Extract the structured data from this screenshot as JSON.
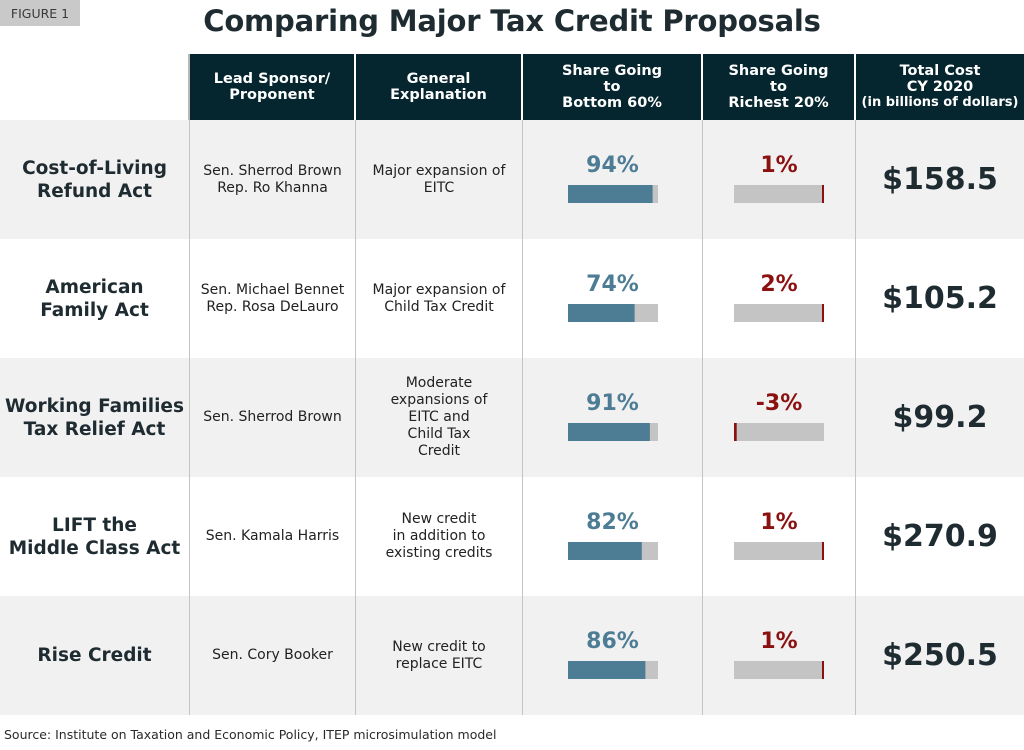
{
  "figure_label": "FIGURE 1",
  "headers": {
    "sponsor": [
      "Lead Sponsor/",
      "Proponent"
    ],
    "explanation": [
      "General",
      "Explanation"
    ],
    "bottom": [
      "Share Going",
      "to",
      "Bottom 60%"
    ],
    "richest": [
      "Share Going",
      "to",
      "Richest 20%"
    ],
    "cost": [
      "Total Cost",
      "CY 2020"
    ],
    "cost_sub": "(in billions of dollars)"
  },
  "rows": [
    {
      "name": [
        "Cost-of-Living",
        "Refund Act"
      ],
      "sponsor": [
        "Sen. Sherrod Brown",
        "Rep. Ro Khanna"
      ],
      "explanation": [
        "Major expansion of",
        "EITC"
      ],
      "bottom60": "94%",
      "richest20": "1%",
      "cost": "$158.5"
    },
    {
      "name": [
        "American",
        "Family Act"
      ],
      "sponsor": [
        "Sen. Michael Bennet",
        "Rep. Rosa DeLauro"
      ],
      "explanation": [
        "Major expansion of",
        "Child Tax Credit"
      ],
      "bottom60": "74%",
      "richest20": "2%",
      "cost": "$105.2"
    },
    {
      "name": [
        "Working Families",
        "Tax Relief Act"
      ],
      "sponsor": [
        "Sen. Sherrod Brown"
      ],
      "explanation": [
        "Moderate",
        "expansions of",
        "EITC and",
        "Child Tax",
        "Credit"
      ],
      "bottom60": "91%",
      "richest20": "-3%",
      "cost": "$99.2"
    },
    {
      "name": [
        "LIFT the",
        "Middle Class Act"
      ],
      "sponsor": [
        "Sen. Kamala Harris"
      ],
      "explanation": [
        "New credit",
        "in addition to",
        "existing credits"
      ],
      "bottom60": "82%",
      "richest20": "1%",
      "cost": "$270.9"
    },
    {
      "name": [
        "Rise Credit"
      ],
      "sponsor": [
        "Sen. Cory Booker"
      ],
      "explanation": [
        "New credit to",
        "replace EITC"
      ],
      "bottom60": "86%",
      "richest20": "1%",
      "cost": "$250.5"
    }
  ],
  "chart_data": {
    "type": "table",
    "title": "Comparing Major Tax Credit Proposals",
    "columns": [
      "Lead Sponsor/ Proponent",
      "General Explanation",
      "Share Going to Bottom 60%",
      "Share Going to Richest 20%",
      "Total Cost CY 2020 (in billions of dollars)"
    ],
    "categories": [
      "Cost-of-Living Refund Act",
      "American Family Act",
      "Working Families Tax Relief Act",
      "LIFT the Middle Class Act",
      "Rise Credit"
    ],
    "series": [
      {
        "name": "Share Going to Bottom 60%",
        "values": [
          94,
          74,
          91,
          82,
          86
        ],
        "unit": "%"
      },
      {
        "name": "Share Going to Richest 20%",
        "values": [
          1,
          2,
          -3,
          1,
          1
        ],
        "unit": "%"
      },
      {
        "name": "Total Cost CY 2020",
        "values": [
          158.5,
          105.2,
          99.2,
          270.9,
          250.5
        ],
        "unit": "billions of dollars"
      }
    ],
    "bar_range": [
      0,
      100
    ],
    "colors": {
      "bottom_bar": "#4d7c95",
      "rich_bar": "#8b1111",
      "track": "#c4c4c4",
      "header": "#06262f"
    }
  },
  "source": "Source: Institute on Taxation and Economic Policy, ITEP microsimulation model"
}
